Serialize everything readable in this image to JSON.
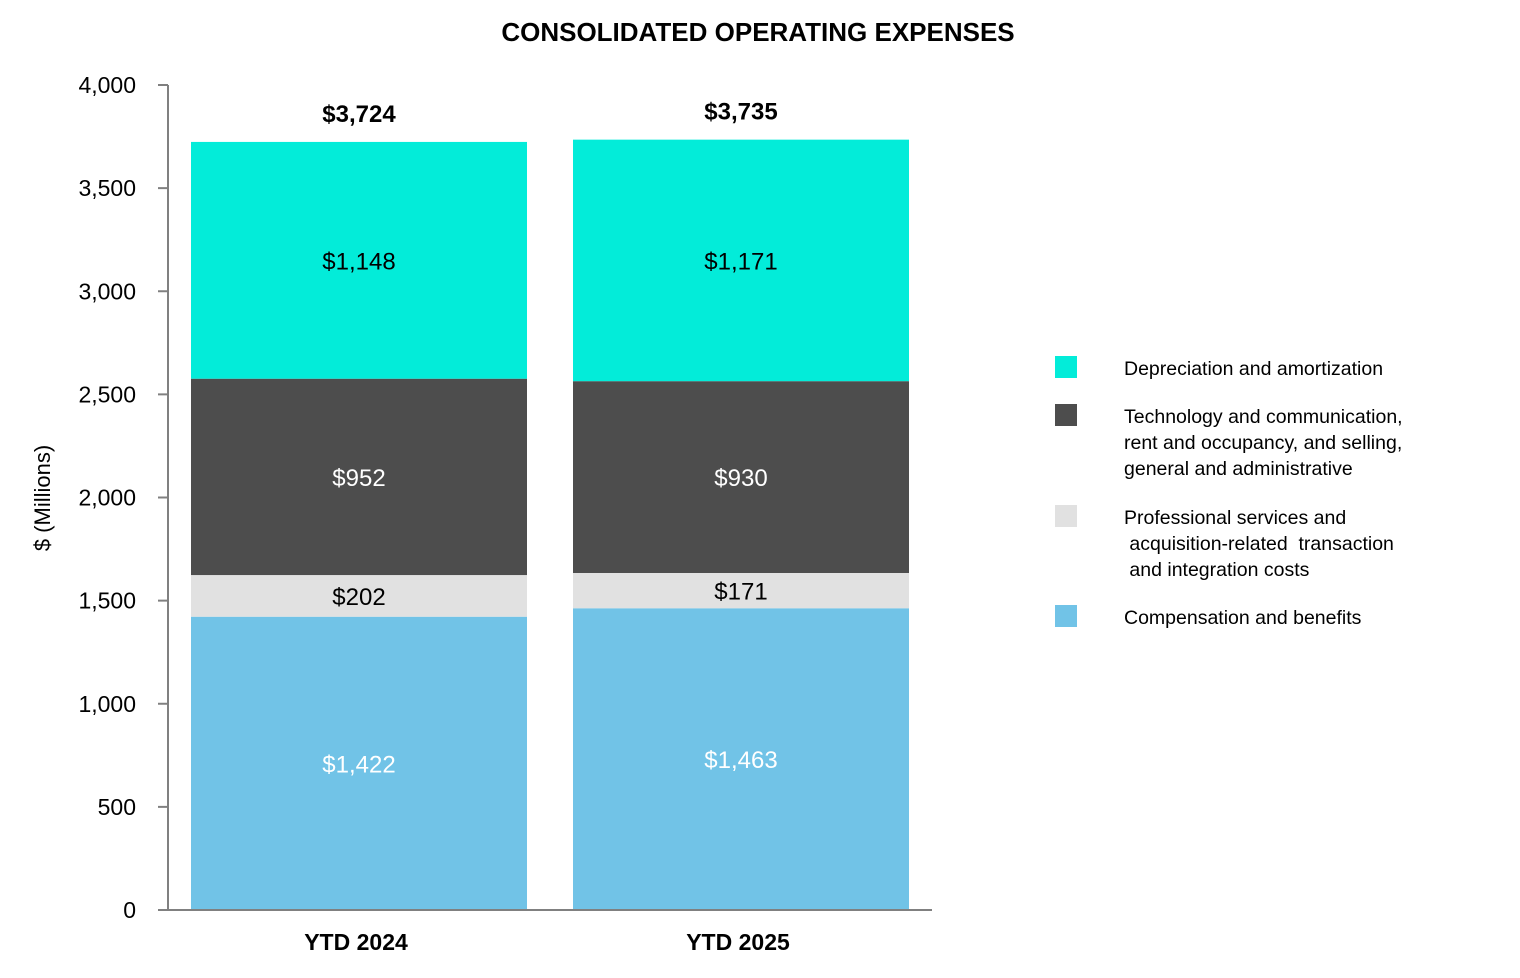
{
  "chart_data": {
    "type": "bar",
    "stacked": true,
    "title": "CONSOLIDATED OPERATING EXPENSES",
    "xlabel": "",
    "ylabel": "$ (Millions)",
    "ylim": [
      0,
      4000
    ],
    "yticks": [
      0,
      500,
      1000,
      1500,
      2000,
      2500,
      3000,
      3500,
      4000
    ],
    "ytick_labels": [
      "0",
      "500",
      "1,000",
      "1,500",
      "2,000",
      "2,500",
      "3,000",
      "3,500",
      "4,000"
    ],
    "categories": [
      "YTD 2024",
      "YTD 2025"
    ],
    "totals": [
      3724,
      3735
    ],
    "total_labels": [
      "$3,724",
      "$3,735"
    ],
    "grid": false,
    "legend_position": "right",
    "series": [
      {
        "name": "Compensation and benefits",
        "legend_lines": [
          "Compensation and benefits"
        ],
        "color": "#71c3e7",
        "label_color": "#ffffff",
        "values": [
          1422,
          1463
        ],
        "labels": [
          "$1,422",
          "$1,463"
        ]
      },
      {
        "name": "Professional services and acquisition-related transaction and integration costs",
        "legend_lines": [
          "Professional services and",
          " acquisition-related  transaction",
          " and integration costs"
        ],
        "color": "#e1e1e1",
        "label_color": "#000000",
        "values": [
          202,
          171
        ],
        "labels": [
          "$202",
          "$171"
        ]
      },
      {
        "name": "Technology and communication, rent and occupancy, and selling, general and administrative",
        "legend_lines": [
          "Technology and communication,",
          "rent and occupancy, and selling,",
          "general and administrative"
        ],
        "color": "#4d4d4d",
        "label_color": "#ffffff",
        "values": [
          952,
          930
        ],
        "labels": [
          "$952",
          "$930"
        ]
      },
      {
        "name": "Depreciation and amortization",
        "legend_lines": [
          "Depreciation and amortization"
        ],
        "color": "#03ecd9",
        "label_color": "#000000",
        "values": [
          1148,
          1171
        ],
        "labels": [
          "$1,148",
          "$1,171"
        ]
      }
    ]
  }
}
